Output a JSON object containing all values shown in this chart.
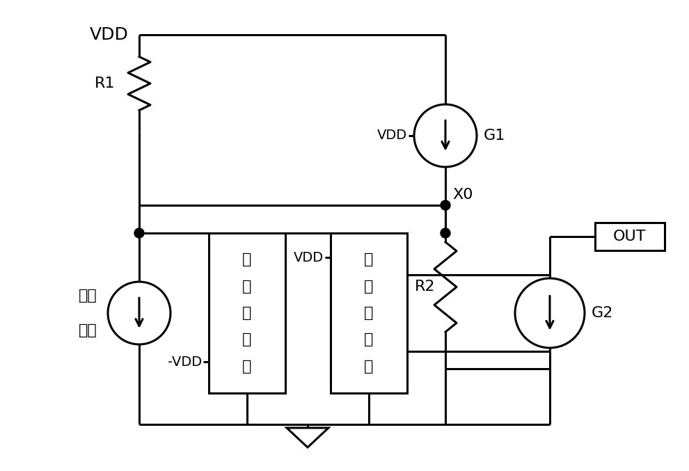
{
  "bg_color": "#ffffff",
  "line_color": "#000000",
  "line_width": 2.2,
  "fig_width": 9.9,
  "fig_height": 6.77,
  "labels": {
    "VDD_top": "VDD",
    "R1": "R1",
    "G1": "G1",
    "G2": "G2",
    "VDD_G1": "VDD",
    "VDD_box2_top": "VDD",
    "VDD_box1_bot": "VDD",
    "X0": "X0",
    "R2": "R2",
    "OUT": "OUT",
    "box1_text": [
      "上",
      "钓",
      "位",
      "单",
      "元"
    ],
    "box2_text": [
      "下",
      "钓",
      "位",
      "单",
      "元"
    ],
    "unit_left_label": [
      "待测",
      "单元"
    ]
  }
}
